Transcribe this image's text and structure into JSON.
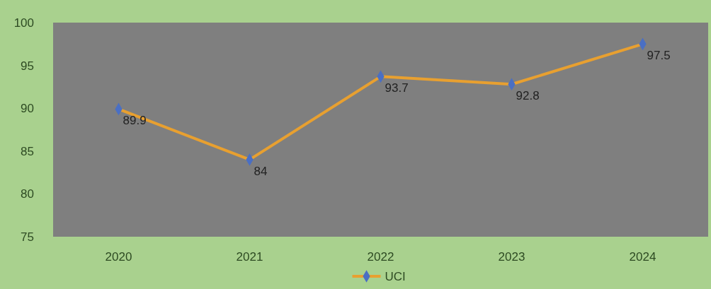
{
  "chart_data": {
    "type": "line",
    "categories": [
      "2020",
      "2021",
      "2022",
      "2023",
      "2024"
    ],
    "series": [
      {
        "name": "UCI",
        "color": "#e8a030",
        "values": [
          89.9,
          84,
          93.7,
          92.8,
          97.5
        ]
      }
    ],
    "ylim": [
      75,
      100
    ],
    "yticks": [
      75,
      80,
      85,
      90,
      95,
      100
    ],
    "data_labels": true,
    "marker": "diamond",
    "legend": "bottom"
  }
}
